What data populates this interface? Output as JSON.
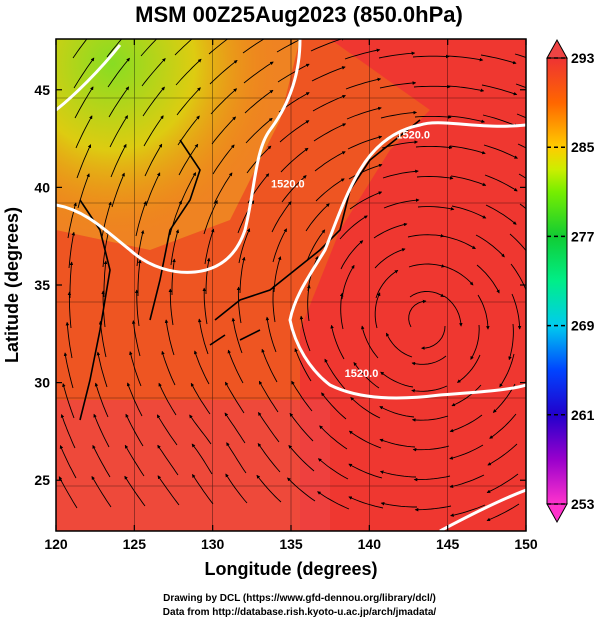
{
  "title": "MSM 00Z25Aug2023 (850.0hPa)",
  "xaxis": {
    "label": "Longitude (degrees)",
    "ticks": [
      120,
      125,
      130,
      135,
      140,
      145,
      150
    ],
    "range": [
      120,
      150
    ]
  },
  "yaxis": {
    "label": "Latitude  (degrees)",
    "ticks": [
      25,
      30,
      35,
      40,
      45
    ],
    "range": [
      22.4,
      47.6
    ]
  },
  "colorbar": {
    "ticks": [
      253,
      261,
      269,
      277,
      285,
      293
    ],
    "range": [
      253,
      293
    ],
    "colors": [
      "#ff33cc",
      "#9900cc",
      "#3300cc",
      "#0033ff",
      "#00ccff",
      "#00ff99",
      "#00cc33",
      "#66ff00",
      "#ccff00",
      "#ffcc00",
      "#ff8800",
      "#ff3300",
      "#ee4444"
    ]
  },
  "contour_labels": [
    {
      "text": "1520.0",
      "lon": 142.8,
      "lat": 42.5
    },
    {
      "text": "1520.0",
      "lon": 134.8,
      "lat": 40.0
    },
    {
      "text": "1520.0",
      "lon": 139.5,
      "lat": 30.3
    }
  ],
  "footer": {
    "line1": "Drawing by DCL (https://www.gfd-dennou.org/library/dcl/)",
    "line2": "Data from http://database.rish.kyoto-u.ac.jp/arch/jmadata/"
  }
}
